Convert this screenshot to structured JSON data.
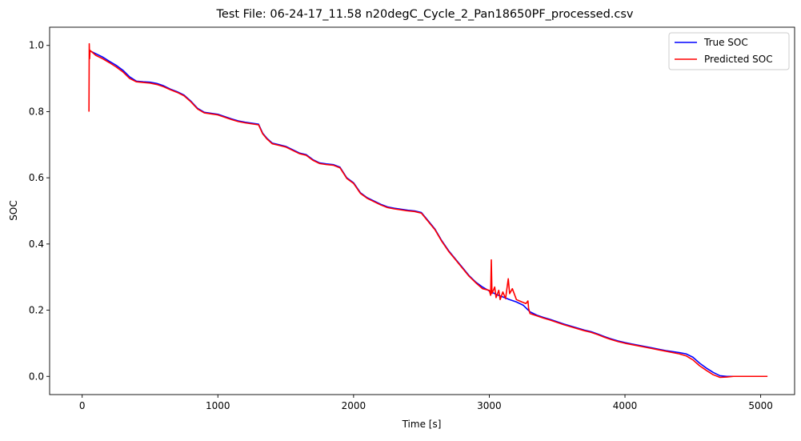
{
  "chart_data": {
    "type": "line",
    "title": "Test File: 06-24-17_11.58 n20degC_Cycle_2_Pan18650PF_processed.csv",
    "xlabel": "Time [s]",
    "ylabel": "SOC",
    "xlim": [
      -240,
      5250
    ],
    "ylim": [
      -0.055,
      1.055
    ],
    "xticks": [
      0,
      1000,
      2000,
      3000,
      4000,
      5000
    ],
    "yticks": [
      0.0,
      0.2,
      0.4,
      0.6,
      0.8,
      1.0
    ],
    "xtick_labels": [
      "0",
      "1000",
      "2000",
      "3000",
      "4000",
      "5000"
    ],
    "ytick_labels": [
      "0.0",
      "0.2",
      "0.4",
      "0.6",
      "0.8",
      "1.0"
    ],
    "grid": false,
    "legend": "top-right",
    "series": [
      {
        "name": "True SOC",
        "color": "#0000ff",
        "points": [
          [
            50,
            0.985
          ],
          [
            100,
            0.975
          ],
          [
            150,
            0.965
          ],
          [
            200,
            0.952
          ],
          [
            250,
            0.94
          ],
          [
            300,
            0.925
          ],
          [
            350,
            0.905
          ],
          [
            400,
            0.892
          ],
          [
            450,
            0.89
          ],
          [
            500,
            0.889
          ],
          [
            550,
            0.885
          ],
          [
            600,
            0.878
          ],
          [
            650,
            0.868
          ],
          [
            700,
            0.86
          ],
          [
            750,
            0.85
          ],
          [
            800,
            0.832
          ],
          [
            850,
            0.81
          ],
          [
            900,
            0.798
          ],
          [
            950,
            0.795
          ],
          [
            1000,
            0.792
          ],
          [
            1050,
            0.785
          ],
          [
            1100,
            0.778
          ],
          [
            1150,
            0.772
          ],
          [
            1200,
            0.768
          ],
          [
            1250,
            0.765
          ],
          [
            1300,
            0.762
          ],
          [
            1330,
            0.735
          ],
          [
            1360,
            0.72
          ],
          [
            1400,
            0.705
          ],
          [
            1450,
            0.7
          ],
          [
            1500,
            0.695
          ],
          [
            1550,
            0.685
          ],
          [
            1600,
            0.675
          ],
          [
            1650,
            0.67
          ],
          [
            1700,
            0.655
          ],
          [
            1750,
            0.645
          ],
          [
            1800,
            0.642
          ],
          [
            1850,
            0.64
          ],
          [
            1900,
            0.632
          ],
          [
            1950,
            0.6
          ],
          [
            2000,
            0.585
          ],
          [
            2050,
            0.555
          ],
          [
            2100,
            0.54
          ],
          [
            2150,
            0.53
          ],
          [
            2200,
            0.52
          ],
          [
            2250,
            0.512
          ],
          [
            2300,
            0.508
          ],
          [
            2350,
            0.505
          ],
          [
            2400,
            0.502
          ],
          [
            2450,
            0.5
          ],
          [
            2500,
            0.495
          ],
          [
            2550,
            0.47
          ],
          [
            2600,
            0.445
          ],
          [
            2650,
            0.41
          ],
          [
            2700,
            0.38
          ],
          [
            2750,
            0.355
          ],
          [
            2800,
            0.33
          ],
          [
            2850,
            0.305
          ],
          [
            2900,
            0.285
          ],
          [
            2950,
            0.27
          ],
          [
            3000,
            0.258
          ],
          [
            3050,
            0.248
          ],
          [
            3100,
            0.24
          ],
          [
            3150,
            0.232
          ],
          [
            3200,
            0.225
          ],
          [
            3250,
            0.215
          ],
          [
            3300,
            0.195
          ],
          [
            3350,
            0.185
          ],
          [
            3400,
            0.178
          ],
          [
            3450,
            0.172
          ],
          [
            3500,
            0.165
          ],
          [
            3550,
            0.158
          ],
          [
            3600,
            0.152
          ],
          [
            3650,
            0.146
          ],
          [
            3700,
            0.14
          ],
          [
            3750,
            0.135
          ],
          [
            3800,
            0.128
          ],
          [
            3850,
            0.12
          ],
          [
            3900,
            0.113
          ],
          [
            3950,
            0.107
          ],
          [
            4000,
            0.102
          ],
          [
            4050,
            0.098
          ],
          [
            4100,
            0.094
          ],
          [
            4150,
            0.09
          ],
          [
            4200,
            0.086
          ],
          [
            4250,
            0.082
          ],
          [
            4300,
            0.078
          ],
          [
            4350,
            0.075
          ],
          [
            4400,
            0.072
          ],
          [
            4450,
            0.068
          ],
          [
            4500,
            0.058
          ],
          [
            4550,
            0.04
          ],
          [
            4600,
            0.025
          ],
          [
            4650,
            0.012
          ],
          [
            4700,
            0.002
          ],
          [
            4750,
            0.0
          ],
          [
            4800,
            0.0
          ],
          [
            4900,
            0.0
          ],
          [
            5050,
            0.0
          ]
        ]
      },
      {
        "name": "Predicted SOC",
        "color": "#ff0000",
        "points": [
          [
            50,
            0.8
          ],
          [
            52,
            1.005
          ],
          [
            55,
            0.96
          ],
          [
            58,
            0.985
          ],
          [
            100,
            0.97
          ],
          [
            150,
            0.96
          ],
          [
            200,
            0.948
          ],
          [
            250,
            0.935
          ],
          [
            300,
            0.92
          ],
          [
            350,
            0.9
          ],
          [
            400,
            0.89
          ],
          [
            450,
            0.888
          ],
          [
            500,
            0.886
          ],
          [
            550,
            0.882
          ],
          [
            600,
            0.875
          ],
          [
            650,
            0.866
          ],
          [
            700,
            0.858
          ],
          [
            750,
            0.848
          ],
          [
            800,
            0.83
          ],
          [
            850,
            0.808
          ],
          [
            900,
            0.796
          ],
          [
            950,
            0.793
          ],
          [
            1000,
            0.79
          ],
          [
            1050,
            0.783
          ],
          [
            1100,
            0.776
          ],
          [
            1150,
            0.77
          ],
          [
            1200,
            0.766
          ],
          [
            1250,
            0.763
          ],
          [
            1300,
            0.76
          ],
          [
            1330,
            0.733
          ],
          [
            1360,
            0.718
          ],
          [
            1400,
            0.703
          ],
          [
            1450,
            0.698
          ],
          [
            1500,
            0.693
          ],
          [
            1550,
            0.683
          ],
          [
            1600,
            0.673
          ],
          [
            1650,
            0.668
          ],
          [
            1700,
            0.653
          ],
          [
            1750,
            0.643
          ],
          [
            1800,
            0.64
          ],
          [
            1850,
            0.638
          ],
          [
            1900,
            0.63
          ],
          [
            1950,
            0.598
          ],
          [
            2000,
            0.583
          ],
          [
            2050,
            0.553
          ],
          [
            2100,
            0.538
          ],
          [
            2150,
            0.528
          ],
          [
            2200,
            0.518
          ],
          [
            2250,
            0.51
          ],
          [
            2300,
            0.506
          ],
          [
            2350,
            0.503
          ],
          [
            2400,
            0.5
          ],
          [
            2450,
            0.498
          ],
          [
            2500,
            0.493
          ],
          [
            2550,
            0.468
          ],
          [
            2600,
            0.443
          ],
          [
            2650,
            0.408
          ],
          [
            2700,
            0.378
          ],
          [
            2750,
            0.353
          ],
          [
            2800,
            0.328
          ],
          [
            2850,
            0.303
          ],
          [
            2900,
            0.283
          ],
          [
            2950,
            0.265
          ],
          [
            3000,
            0.26
          ],
          [
            3010,
            0.245
          ],
          [
            3015,
            0.352
          ],
          [
            3020,
            0.25
          ],
          [
            3040,
            0.27
          ],
          [
            3050,
            0.238
          ],
          [
            3070,
            0.26
          ],
          [
            3080,
            0.232
          ],
          [
            3100,
            0.255
          ],
          [
            3120,
            0.235
          ],
          [
            3140,
            0.295
          ],
          [
            3150,
            0.25
          ],
          [
            3170,
            0.265
          ],
          [
            3200,
            0.232
          ],
          [
            3240,
            0.225
          ],
          [
            3270,
            0.22
          ],
          [
            3285,
            0.228
          ],
          [
            3290,
            0.205
          ],
          [
            3300,
            0.19
          ],
          [
            3350,
            0.183
          ],
          [
            3400,
            0.176
          ],
          [
            3450,
            0.17
          ],
          [
            3500,
            0.163
          ],
          [
            3550,
            0.156
          ],
          [
            3600,
            0.15
          ],
          [
            3650,
            0.144
          ],
          [
            3700,
            0.138
          ],
          [
            3750,
            0.133
          ],
          [
            3800,
            0.126
          ],
          [
            3850,
            0.118
          ],
          [
            3900,
            0.111
          ],
          [
            3950,
            0.105
          ],
          [
            4000,
            0.1
          ],
          [
            4050,
            0.096
          ],
          [
            4100,
            0.092
          ],
          [
            4150,
            0.088
          ],
          [
            4200,
            0.084
          ],
          [
            4250,
            0.08
          ],
          [
            4300,
            0.076
          ],
          [
            4350,
            0.072
          ],
          [
            4400,
            0.068
          ],
          [
            4450,
            0.062
          ],
          [
            4500,
            0.05
          ],
          [
            4550,
            0.032
          ],
          [
            4600,
            0.018
          ],
          [
            4650,
            0.005
          ],
          [
            4700,
            -0.003
          ],
          [
            4750,
            -0.002
          ],
          [
            4800,
            0.0
          ],
          [
            4900,
            0.0
          ],
          [
            5050,
            0.0
          ]
        ]
      }
    ]
  }
}
